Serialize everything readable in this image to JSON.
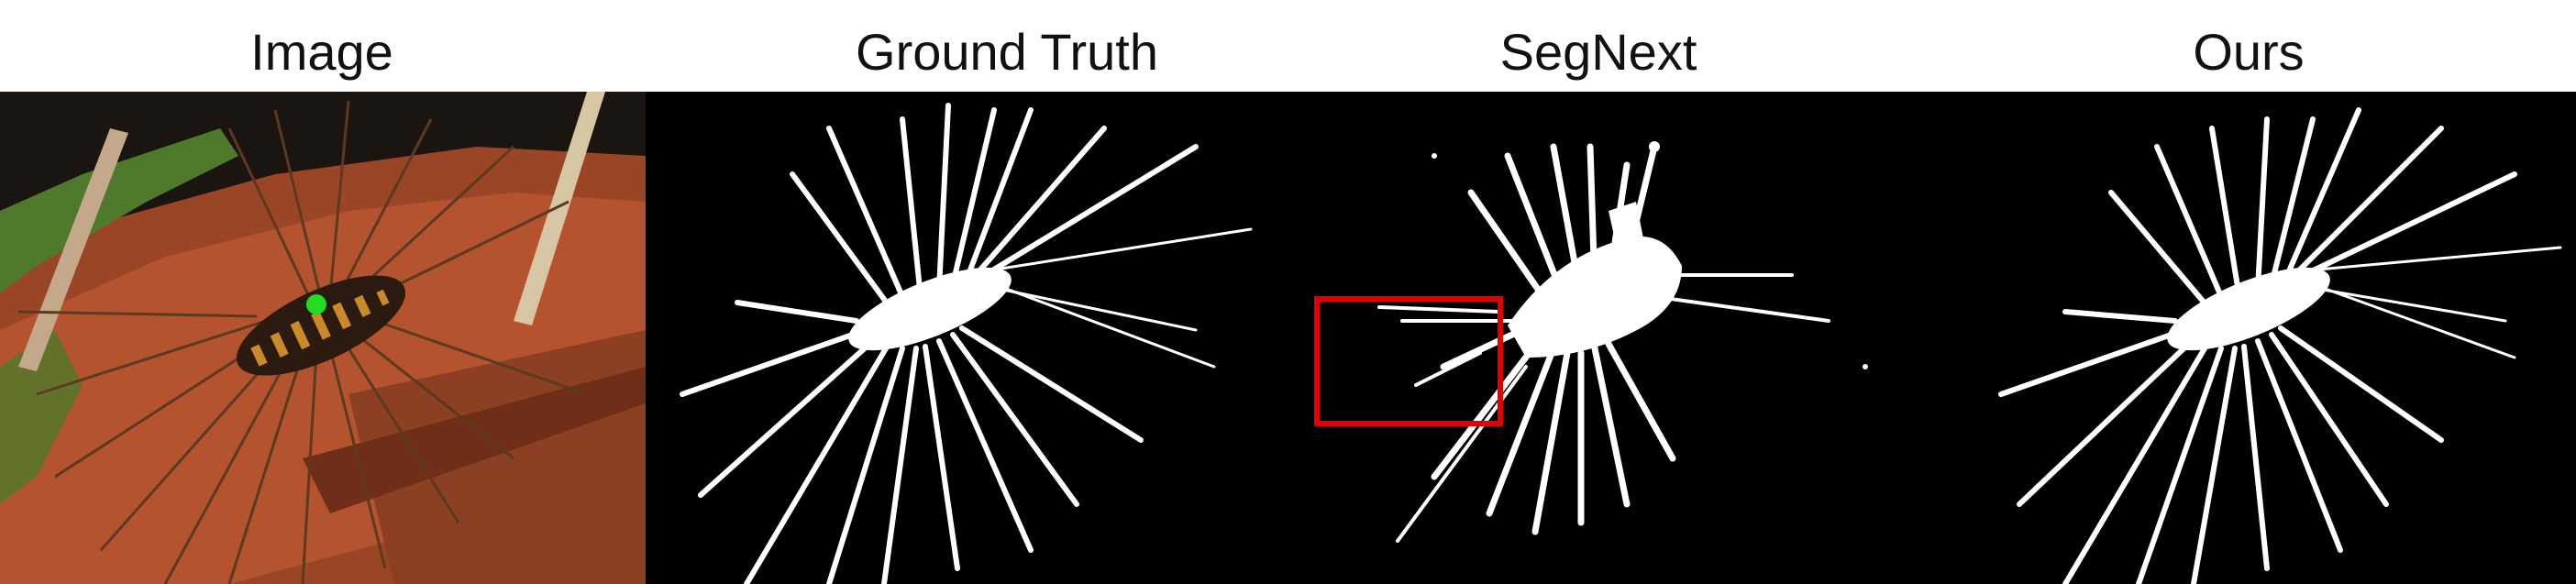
{
  "figure": {
    "titles": [
      "Image",
      "Ground Truth",
      "SegNext",
      "Ours"
    ],
    "colors": {
      "background": "#ffffff",
      "mask_bg": "#000000",
      "mask_fg": "#ffffff",
      "click_marker": "#22dd22",
      "highlight_box": "#e00000",
      "soil": "#b5532f",
      "moss": "#4f7a2b",
      "body_dark": "#2a1a0f",
      "body_band": "#c98a2a"
    },
    "panels": [
      {
        "id": "image",
        "content": "photo of centipede on log with green click marker"
      },
      {
        "id": "ground-truth",
        "content": "binary mask"
      },
      {
        "id": "segnext",
        "content": "binary mask with red highlight box"
      },
      {
        "id": "ours",
        "content": "binary mask"
      }
    ]
  }
}
